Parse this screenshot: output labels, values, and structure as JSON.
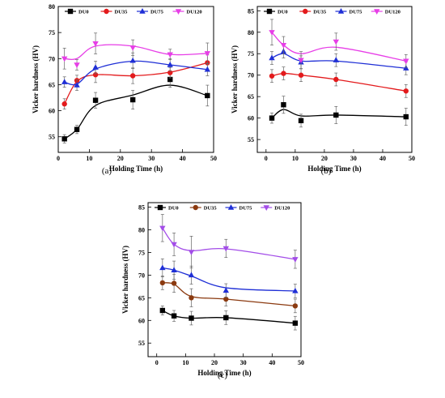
{
  "chart_data": [
    {
      "type": "line",
      "panel_label": "(a)",
      "xlabel": "Holding Time (h)",
      "ylabel": "Vicker hardness (HV)",
      "xlim": [
        0,
        50
      ],
      "ylim": [
        52,
        80
      ],
      "xticks": [
        0,
        10,
        20,
        30,
        40,
        50
      ],
      "yticks": [
        55,
        60,
        65,
        70,
        75,
        80
      ],
      "legend_position": "top",
      "series": [
        {
          "name": "DU0",
          "color": "#000000",
          "marker": "square",
          "x": [
            2,
            6,
            12,
            24,
            36,
            48
          ],
          "y": [
            54.6,
            56.4,
            62.0,
            62.1,
            66.0,
            62.9
          ],
          "err": [
            0.8,
            0.8,
            1.5,
            1.8,
            1.5,
            2.0
          ],
          "curve_y": [
            54.6,
            56.4,
            61.0,
            63.0,
            64.9,
            62.9
          ]
        },
        {
          "name": "DU35",
          "color": "#e31a1c",
          "marker": "circle",
          "x": [
            2,
            6,
            12,
            24,
            36,
            48
          ],
          "y": [
            61.3,
            65.8,
            66.9,
            66.7,
            67.3,
            69.2
          ],
          "err": [
            1.0,
            1.0,
            1.5,
            1.5,
            1.0,
            1.5
          ],
          "curve_y": [
            61.3,
            65.6,
            66.9,
            66.7,
            67.4,
            69.2
          ]
        },
        {
          "name": "DU75",
          "color": "#1f2fd6",
          "marker": "triangle-up",
          "x": [
            2,
            6,
            12,
            24,
            36,
            48
          ],
          "y": [
            65.5,
            64.9,
            68.3,
            69.6,
            68.8,
            67.9
          ],
          "err": [
            1.0,
            1.0,
            1.2,
            1.5,
            1.2,
            1.2
          ],
          "curve_y": [
            65.5,
            65.1,
            68.0,
            69.5,
            68.8,
            67.9
          ]
        },
        {
          "name": "DU120",
          "color": "#e73ee7",
          "marker": "triangle-down",
          "x": [
            2,
            6,
            12,
            24,
            36,
            48
          ],
          "y": [
            70.0,
            68.8,
            72.9,
            72.1,
            70.8,
            71.0
          ],
          "err": [
            2.0,
            1.0,
            2.0,
            1.5,
            1.0,
            2.0
          ],
          "curve_y": [
            70.0,
            70.0,
            72.4,
            72.4,
            70.8,
            71.0
          ]
        }
      ]
    },
    {
      "type": "line",
      "panel_label": "(b)",
      "xlabel": "Holding Time (h)",
      "ylabel": "Vicker hardness (HV)",
      "xlim": [
        -3,
        50
      ],
      "ylim": [
        52,
        86
      ],
      "xticks": [
        0,
        10,
        20,
        30,
        40,
        50
      ],
      "yticks": [
        55,
        60,
        65,
        70,
        75,
        80,
        85
      ],
      "legend_position": "top",
      "series": [
        {
          "name": "DU0",
          "color": "#000000",
          "marker": "square",
          "x": [
            2,
            6,
            12,
            24,
            48
          ],
          "y": [
            60.0,
            63.1,
            59.4,
            60.7,
            60.3
          ],
          "err": [
            1.2,
            2.0,
            1.5,
            2.0,
            2.0
          ],
          "curve_y": [
            60.0,
            62.0,
            60.5,
            60.7,
            60.3
          ]
        },
        {
          "name": "DU35",
          "color": "#e31a1c",
          "marker": "circle",
          "x": [
            2,
            6,
            12,
            24,
            48
          ],
          "y": [
            69.8,
            70.4,
            70.0,
            69.0,
            66.3
          ],
          "err": [
            1.5,
            1.5,
            1.5,
            1.5,
            1.5
          ],
          "curve_y": [
            69.8,
            70.4,
            70.0,
            69.0,
            66.3
          ]
        },
        {
          "name": "DU75",
          "color": "#1f2fd6",
          "marker": "triangle-up",
          "x": [
            2,
            6,
            12,
            24,
            48
          ],
          "y": [
            74.0,
            75.5,
            73.0,
            73.5,
            71.6
          ],
          "err": [
            1.5,
            1.5,
            1.5,
            1.5,
            1.5
          ],
          "curve_y": [
            74.0,
            75.0,
            73.3,
            73.3,
            71.6
          ]
        },
        {
          "name": "DU120",
          "color": "#e73ee7",
          "marker": "triangle-down",
          "x": [
            2,
            6,
            12,
            24,
            48
          ],
          "y": [
            80.0,
            77.0,
            73.5,
            77.8,
            73.3
          ],
          "err": [
            3.0,
            2.0,
            2.0,
            2.0,
            1.5
          ],
          "curve_y": [
            80.0,
            77.0,
            75.0,
            76.5,
            73.3
          ]
        }
      ]
    },
    {
      "type": "line",
      "panel_label": "(c)",
      "xlabel": "Holding Time (h)",
      "ylabel": "Vicker hardness (HV)",
      "xlim": [
        -3,
        50
      ],
      "ylim": [
        52,
        86
      ],
      "xticks": [
        0,
        10,
        20,
        30,
        40,
        50
      ],
      "yticks": [
        55,
        60,
        65,
        70,
        75,
        80,
        85
      ],
      "legend_position": "top",
      "series": [
        {
          "name": "DU0",
          "color": "#000000",
          "marker": "square",
          "x": [
            2,
            6,
            12,
            24,
            48
          ],
          "y": [
            62.2,
            61.0,
            60.5,
            60.6,
            59.4
          ],
          "err": [
            1.0,
            1.2,
            1.5,
            1.5,
            1.5
          ],
          "curve_y": [
            62.2,
            61.0,
            60.5,
            60.6,
            59.4
          ]
        },
        {
          "name": "DU35",
          "color": "#8b3a10",
          "marker": "circle",
          "x": [
            2,
            6,
            12,
            24,
            48
          ],
          "y": [
            68.3,
            68.2,
            65.0,
            64.7,
            63.2
          ],
          "err": [
            1.5,
            2.0,
            2.0,
            1.5,
            1.5
          ],
          "curve_y": [
            68.3,
            68.0,
            65.3,
            64.7,
            63.2
          ]
        },
        {
          "name": "DU75",
          "color": "#1f2fd6",
          "marker": "triangle-up",
          "x": [
            2,
            6,
            12,
            24,
            48
          ],
          "y": [
            71.6,
            71.1,
            70.0,
            66.6,
            66.5
          ],
          "err": [
            2.0,
            2.0,
            2.0,
            1.5,
            1.5
          ],
          "curve_y": [
            71.6,
            71.1,
            69.8,
            67.2,
            66.5
          ]
        },
        {
          "name": "DU120",
          "color": "#a34de8",
          "marker": "triangle-down",
          "x": [
            2,
            6,
            12,
            24,
            48
          ],
          "y": [
            80.4,
            76.8,
            75.1,
            75.9,
            73.5
          ],
          "err": [
            3.0,
            2.5,
            3.5,
            2.0,
            2.0
          ],
          "curve_y": [
            80.4,
            76.8,
            75.4,
            75.8,
            73.5
          ]
        }
      ]
    }
  ]
}
